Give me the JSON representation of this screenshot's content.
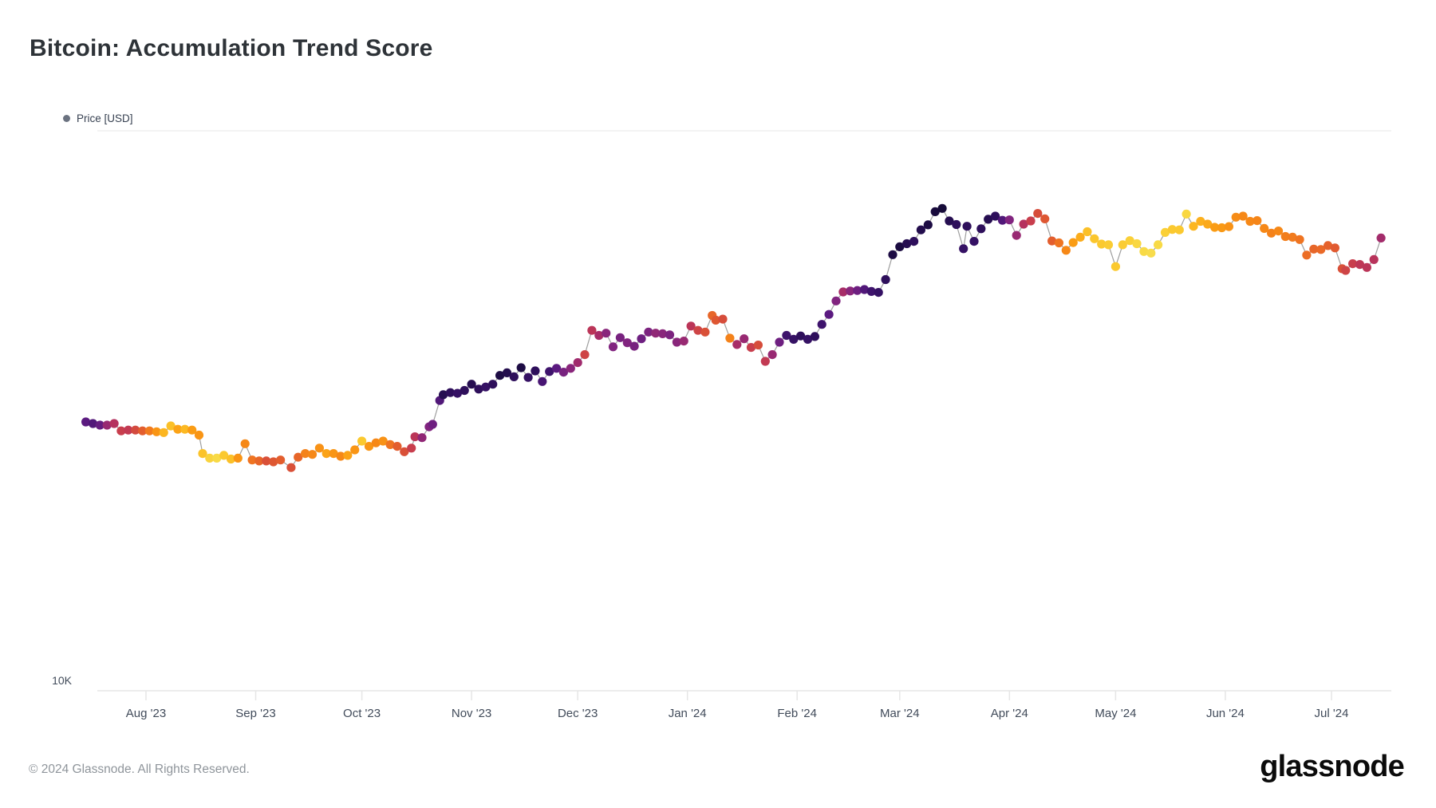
{
  "title": "Bitcoin: Accumulation Trend Score",
  "legend": {
    "label": "Price [USD]",
    "dot_color": "#6b7280"
  },
  "footer": {
    "copyright": "© 2024 Glassnode. All Rights Reserved.",
    "logo_text": "glassnode"
  },
  "colors": {
    "line": "#9e9e9e",
    "axis": "#e6e6e6",
    "top_border": "#efefef",
    "tick_text": "#414b5a"
  },
  "chart_data": {
    "type": "scatter",
    "title": "Bitcoin: Accumulation Trend Score",
    "series_name": "Price [USD]",
    "y_scale": "log",
    "y_tick_labels": [
      "10K"
    ],
    "x_tick_labels": [
      "Aug '23",
      "Sep '23",
      "Oct '23",
      "Nov '23",
      "Dec '23",
      "Jan '24",
      "Feb '24",
      "Mar '24",
      "Apr '24",
      "May '24",
      "Jun '24",
      "Jul '24"
    ],
    "x_tick_dates": [
      "2023-08-01",
      "2023-09-01",
      "2023-10-01",
      "2023-11-01",
      "2023-12-01",
      "2024-01-01",
      "2024-02-01",
      "2024-03-01",
      "2024-04-01",
      "2024-05-01",
      "2024-06-01",
      "2024-07-01"
    ],
    "x_range": [
      "2023-07-15",
      "2024-07-15"
    ],
    "legend_position": "top-left",
    "grid": "minimal",
    "point_unit": [
      "date",
      "price_thousand_usd",
      "accumulation_score_0_to_1"
    ],
    "color_scale_note": "score 0 = yellow (distribution), score 1 = dark navy (accumulation)",
    "color_stops": [
      [
        0.0,
        "#f7e564"
      ],
      [
        0.05,
        "#f8da46"
      ],
      [
        0.1,
        "#fbc92f"
      ],
      [
        0.17,
        "#fcb31e"
      ],
      [
        0.24,
        "#fa9c14"
      ],
      [
        0.31,
        "#f58518"
      ],
      [
        0.38,
        "#ec6d25"
      ],
      [
        0.45,
        "#dc5334"
      ],
      [
        0.52,
        "#c83e4d"
      ],
      [
        0.58,
        "#b5315e"
      ],
      [
        0.65,
        "#9c2a70"
      ],
      [
        0.72,
        "#81247f"
      ],
      [
        0.8,
        "#5b1a80"
      ],
      [
        0.87,
        "#391269"
      ],
      [
        0.94,
        "#1f0c48"
      ],
      [
        1.0,
        "#120a32"
      ]
    ],
    "points": [
      [
        "2023-07-15",
        30.3,
        0.8
      ],
      [
        "2023-07-17",
        30.1,
        0.82
      ],
      [
        "2023-07-19",
        29.9,
        0.78
      ],
      [
        "2023-07-21",
        29.9,
        0.66
      ],
      [
        "2023-07-23",
        30.1,
        0.58
      ],
      [
        "2023-07-25",
        29.2,
        0.52
      ],
      [
        "2023-07-27",
        29.3,
        0.54
      ],
      [
        "2023-07-29",
        29.3,
        0.48
      ],
      [
        "2023-07-31",
        29.2,
        0.42
      ],
      [
        "2023-08-02",
        29.2,
        0.34
      ],
      [
        "2023-08-04",
        29.1,
        0.26
      ],
      [
        "2023-08-06",
        29.0,
        0.16
      ],
      [
        "2023-08-08",
        29.8,
        0.13
      ],
      [
        "2023-08-10",
        29.4,
        0.22
      ],
      [
        "2023-08-12",
        29.4,
        0.15
      ],
      [
        "2023-08-14",
        29.3,
        0.24
      ],
      [
        "2023-08-16",
        28.7,
        0.26
      ],
      [
        "2023-08-17",
        26.6,
        0.12
      ],
      [
        "2023-08-19",
        26.1,
        0.07
      ],
      [
        "2023-08-21",
        26.1,
        0.05
      ],
      [
        "2023-08-23",
        26.4,
        0.1
      ],
      [
        "2023-08-25",
        26.0,
        0.13
      ],
      [
        "2023-08-27",
        26.1,
        0.26
      ],
      [
        "2023-08-29",
        27.7,
        0.3
      ],
      [
        "2023-08-31",
        25.9,
        0.36
      ],
      [
        "2023-09-02",
        25.8,
        0.4
      ],
      [
        "2023-09-04",
        25.8,
        0.46
      ],
      [
        "2023-09-06",
        25.7,
        0.44
      ],
      [
        "2023-09-08",
        25.9,
        0.42
      ],
      [
        "2023-09-11",
        25.1,
        0.46
      ],
      [
        "2023-09-13",
        26.2,
        0.4
      ],
      [
        "2023-09-15",
        26.6,
        0.32
      ],
      [
        "2023-09-17",
        26.5,
        0.3
      ],
      [
        "2023-09-19",
        27.2,
        0.27
      ],
      [
        "2023-09-21",
        26.6,
        0.22
      ],
      [
        "2023-09-23",
        26.6,
        0.26
      ],
      [
        "2023-09-25",
        26.3,
        0.3
      ],
      [
        "2023-09-27",
        26.4,
        0.22
      ],
      [
        "2023-09-29",
        27.0,
        0.26
      ],
      [
        "2023-10-01",
        28.0,
        0.1
      ],
      [
        "2023-10-03",
        27.4,
        0.26
      ],
      [
        "2023-10-05",
        27.8,
        0.3
      ],
      [
        "2023-10-07",
        28.0,
        0.27
      ],
      [
        "2023-10-09",
        27.6,
        0.36
      ],
      [
        "2023-10-11",
        27.4,
        0.42
      ],
      [
        "2023-10-13",
        26.8,
        0.46
      ],
      [
        "2023-10-15",
        27.2,
        0.52
      ],
      [
        "2023-10-16",
        28.5,
        0.56
      ],
      [
        "2023-10-18",
        28.4,
        0.68
      ],
      [
        "2023-10-20",
        29.7,
        0.72
      ],
      [
        "2023-10-21",
        30.0,
        0.76
      ],
      [
        "2023-10-23",
        33.1,
        0.82
      ],
      [
        "2023-10-24",
        33.9,
        0.92
      ],
      [
        "2023-10-26",
        34.2,
        0.9
      ],
      [
        "2023-10-28",
        34.1,
        0.88
      ],
      [
        "2023-10-30",
        34.5,
        0.9
      ],
      [
        "2023-11-01",
        35.4,
        0.92
      ],
      [
        "2023-11-03",
        34.7,
        0.9
      ],
      [
        "2023-11-05",
        35.0,
        0.88
      ],
      [
        "2023-11-07",
        35.4,
        0.9
      ],
      [
        "2023-11-09",
        36.7,
        0.95
      ],
      [
        "2023-11-11",
        37.1,
        0.93
      ],
      [
        "2023-11-13",
        36.5,
        0.9
      ],
      [
        "2023-11-15",
        37.9,
        0.95
      ],
      [
        "2023-11-17",
        36.4,
        0.88
      ],
      [
        "2023-11-19",
        37.4,
        0.9
      ],
      [
        "2023-11-21",
        35.8,
        0.84
      ],
      [
        "2023-11-23",
        37.3,
        0.86
      ],
      [
        "2023-11-25",
        37.8,
        0.8
      ],
      [
        "2023-11-27",
        37.2,
        0.74
      ],
      [
        "2023-11-29",
        37.8,
        0.7
      ],
      [
        "2023-12-01",
        38.7,
        0.64
      ],
      [
        "2023-12-03",
        40.0,
        0.5
      ],
      [
        "2023-12-05",
        44.2,
        0.56
      ],
      [
        "2023-12-07",
        43.3,
        0.62
      ],
      [
        "2023-12-09",
        43.7,
        0.7
      ],
      [
        "2023-12-11",
        41.3,
        0.72
      ],
      [
        "2023-12-13",
        42.9,
        0.74
      ],
      [
        "2023-12-15",
        42.0,
        0.72
      ],
      [
        "2023-12-17",
        41.4,
        0.74
      ],
      [
        "2023-12-19",
        42.7,
        0.76
      ],
      [
        "2023-12-21",
        43.9,
        0.73
      ],
      [
        "2023-12-23",
        43.7,
        0.68
      ],
      [
        "2023-12-25",
        43.6,
        0.7
      ],
      [
        "2023-12-27",
        43.4,
        0.73
      ],
      [
        "2023-12-29",
        42.1,
        0.7
      ],
      [
        "2023-12-31",
        42.3,
        0.66
      ],
      [
        "2024-01-02",
        45.0,
        0.56
      ],
      [
        "2024-01-04",
        44.2,
        0.5
      ],
      [
        "2024-01-06",
        43.9,
        0.46
      ],
      [
        "2024-01-08",
        47.0,
        0.4
      ],
      [
        "2024-01-09",
        46.1,
        0.44
      ],
      [
        "2024-01-11",
        46.3,
        0.47
      ],
      [
        "2024-01-13",
        42.8,
        0.32
      ],
      [
        "2024-01-15",
        41.7,
        0.62
      ],
      [
        "2024-01-17",
        42.7,
        0.66
      ],
      [
        "2024-01-19",
        41.2,
        0.52
      ],
      [
        "2024-01-21",
        41.6,
        0.47
      ],
      [
        "2024-01-23",
        38.9,
        0.54
      ],
      [
        "2024-01-25",
        40.0,
        0.66
      ],
      [
        "2024-01-27",
        42.1,
        0.76
      ],
      [
        "2024-01-29",
        43.3,
        0.86
      ],
      [
        "2024-01-31",
        42.6,
        0.88
      ],
      [
        "2024-02-02",
        43.2,
        0.9
      ],
      [
        "2024-02-04",
        42.6,
        0.88
      ],
      [
        "2024-02-06",
        43.1,
        0.9
      ],
      [
        "2024-02-08",
        45.3,
        0.86
      ],
      [
        "2024-02-10",
        47.2,
        0.8
      ],
      [
        "2024-02-12",
        49.9,
        0.72
      ],
      [
        "2024-02-14",
        51.8,
        0.62
      ],
      [
        "2024-02-16",
        52.0,
        0.7
      ],
      [
        "2024-02-18",
        52.1,
        0.76
      ],
      [
        "2024-02-20",
        52.3,
        0.82
      ],
      [
        "2024-02-22",
        51.9,
        0.86
      ],
      [
        "2024-02-24",
        51.7,
        0.88
      ],
      [
        "2024-02-26",
        54.5,
        0.9
      ],
      [
        "2024-02-28",
        60.4,
        0.95
      ],
      [
        "2024-03-01",
        62.4,
        0.96
      ],
      [
        "2024-03-03",
        63.2,
        0.92
      ],
      [
        "2024-03-05",
        63.8,
        0.9
      ],
      [
        "2024-03-07",
        66.9,
        0.93
      ],
      [
        "2024-03-09",
        68.3,
        0.95
      ],
      [
        "2024-03-11",
        72.1,
        0.97
      ],
      [
        "2024-03-13",
        73.1,
        0.98
      ],
      [
        "2024-03-15",
        69.4,
        0.92
      ],
      [
        "2024-03-17",
        68.4,
        0.9
      ],
      [
        "2024-03-19",
        61.9,
        0.88
      ],
      [
        "2024-03-20",
        67.9,
        0.9
      ],
      [
        "2024-03-22",
        63.8,
        0.88
      ],
      [
        "2024-03-24",
        67.2,
        0.9
      ],
      [
        "2024-03-26",
        69.9,
        0.92
      ],
      [
        "2024-03-28",
        70.8,
        0.9
      ],
      [
        "2024-03-30",
        69.6,
        0.82
      ],
      [
        "2024-04-01",
        69.7,
        0.72
      ],
      [
        "2024-04-03",
        65.4,
        0.66
      ],
      [
        "2024-04-05",
        68.5,
        0.58
      ],
      [
        "2024-04-07",
        69.4,
        0.52
      ],
      [
        "2024-04-09",
        71.6,
        0.47
      ],
      [
        "2024-04-11",
        70.0,
        0.44
      ],
      [
        "2024-04-13",
        63.9,
        0.42
      ],
      [
        "2024-04-15",
        63.4,
        0.36
      ],
      [
        "2024-04-17",
        61.5,
        0.3
      ],
      [
        "2024-04-19",
        63.5,
        0.24
      ],
      [
        "2024-04-21",
        64.9,
        0.19
      ],
      [
        "2024-04-23",
        66.4,
        0.13
      ],
      [
        "2024-04-25",
        64.5,
        0.11
      ],
      [
        "2024-04-27",
        63.1,
        0.1
      ],
      [
        "2024-04-29",
        62.9,
        0.09
      ],
      [
        "2024-05-01",
        57.5,
        0.1
      ],
      [
        "2024-05-03",
        62.9,
        0.09
      ],
      [
        "2024-05-05",
        64.0,
        0.08
      ],
      [
        "2024-05-07",
        63.2,
        0.06
      ],
      [
        "2024-05-09",
        61.2,
        0.05
      ],
      [
        "2024-05-11",
        60.8,
        0.04
      ],
      [
        "2024-05-13",
        62.9,
        0.05
      ],
      [
        "2024-05-15",
        66.2,
        0.08
      ],
      [
        "2024-05-17",
        67.0,
        0.1
      ],
      [
        "2024-05-19",
        66.9,
        0.1
      ],
      [
        "2024-05-21",
        71.4,
        0.06
      ],
      [
        "2024-05-23",
        67.9,
        0.16
      ],
      [
        "2024-05-25",
        69.3,
        0.18
      ],
      [
        "2024-05-27",
        68.5,
        0.2
      ],
      [
        "2024-05-29",
        67.6,
        0.24
      ],
      [
        "2024-05-31",
        67.5,
        0.25
      ],
      [
        "2024-06-02",
        67.8,
        0.27
      ],
      [
        "2024-06-04",
        70.5,
        0.29
      ],
      [
        "2024-06-06",
        70.8,
        0.3
      ],
      [
        "2024-06-08",
        69.3,
        0.3
      ],
      [
        "2024-06-10",
        69.5,
        0.31
      ],
      [
        "2024-06-12",
        67.3,
        0.3
      ],
      [
        "2024-06-14",
        66.0,
        0.32
      ],
      [
        "2024-06-16",
        66.6,
        0.3
      ],
      [
        "2024-06-18",
        65.1,
        0.33
      ],
      [
        "2024-06-20",
        64.9,
        0.34
      ],
      [
        "2024-06-22",
        64.3,
        0.36
      ],
      [
        "2024-06-24",
        60.3,
        0.38
      ],
      [
        "2024-06-26",
        61.8,
        0.4
      ],
      [
        "2024-06-28",
        61.7,
        0.39
      ],
      [
        "2024-06-30",
        62.7,
        0.41
      ],
      [
        "2024-07-02",
        62.1,
        0.43
      ],
      [
        "2024-07-04",
        57.0,
        0.46
      ],
      [
        "2024-07-05",
        56.6,
        0.5
      ],
      [
        "2024-07-07",
        58.2,
        0.52
      ],
      [
        "2024-07-09",
        58.0,
        0.55
      ],
      [
        "2024-07-11",
        57.3,
        0.56
      ],
      [
        "2024-07-13",
        59.2,
        0.57
      ],
      [
        "2024-07-15",
        64.7,
        0.63
      ]
    ]
  }
}
